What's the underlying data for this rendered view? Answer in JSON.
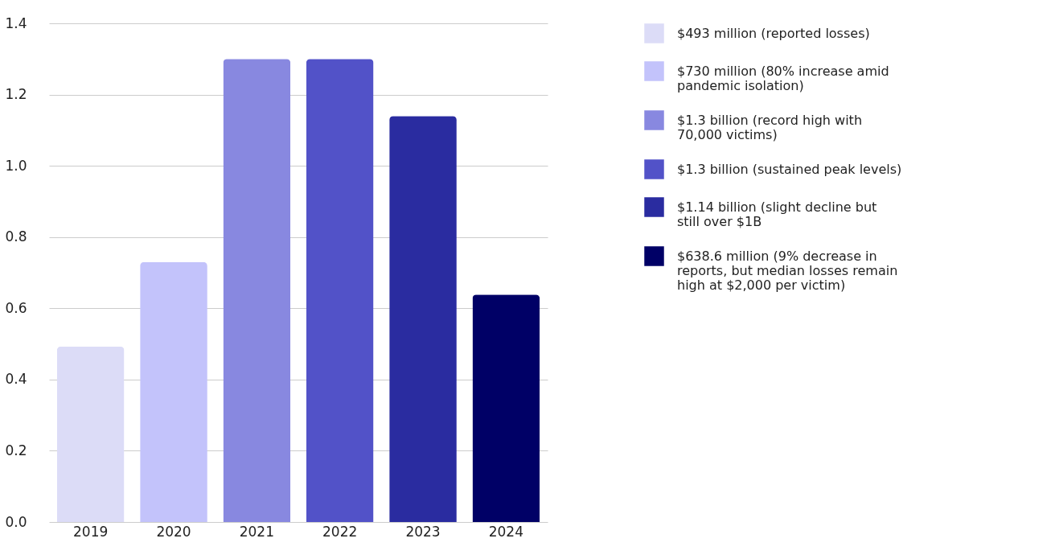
{
  "chart_data": {
    "type": "bar",
    "categories": [
      "2019",
      "2020",
      "2021",
      "2022",
      "2023",
      "2024"
    ],
    "series": [
      {
        "name": "$493 million (reported losses)",
        "color": "#dcdcf7",
        "values": [
          0.493,
          null,
          null,
          null,
          null,
          null
        ]
      },
      {
        "name": "$730 million (80% increase amid pandemic isolation)",
        "color": "#c3c3fb",
        "values": [
          null,
          0.73,
          null,
          null,
          null,
          null
        ]
      },
      {
        "name": "$1.3 billion (record high with 70,000 victims)",
        "color": "#8888e0",
        "values": [
          null,
          null,
          1.3,
          null,
          null,
          null
        ]
      },
      {
        "name": "$1.3 billion (sustained peak levels)",
        "color": "#5252c8",
        "values": [
          null,
          null,
          null,
          1.3,
          null,
          null
        ]
      },
      {
        "name": "$1.14 billion (slight decline but still over $1B",
        "color": "#2a2ca0",
        "values": [
          null,
          null,
          null,
          null,
          1.14,
          null
        ]
      },
      {
        "name": "$638.6 million (9% decrease in reports, but median losses remain high at $2,000 per victim)",
        "color": "#000066",
        "values": [
          null,
          null,
          null,
          null,
          null,
          0.6386
        ]
      }
    ],
    "ylim": [
      0,
      1.4
    ],
    "yticks": [
      {
        "value": 0,
        "label": "0.0"
      },
      0.2,
      0.4,
      0.6,
      0.8,
      {
        "value": 1,
        "label": "1.0"
      },
      1.2,
      1.4
    ],
    "grid": "y",
    "legend": "right"
  }
}
